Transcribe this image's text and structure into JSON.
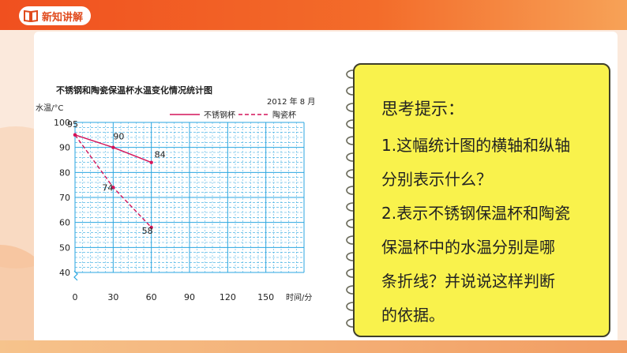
{
  "header": {
    "title": "新知讲解"
  },
  "chart_data": {
    "type": "line",
    "title": "不锈钢和陶瓷保温杯水温变化情况统计图",
    "subtitle": "2012 年 8 月",
    "xlabel": "时间/分",
    "ylabel": "水温/°C",
    "x": [
      0,
      30,
      60
    ],
    "x_ticks": [
      0,
      30,
      60,
      90,
      120,
      150
    ],
    "y_ticks": [
      40,
      50,
      60,
      70,
      80,
      90,
      100
    ],
    "xlim": [
      0,
      180
    ],
    "ylim": [
      40,
      100
    ],
    "grid": true,
    "legend_position": "top-right",
    "series": [
      {
        "name": "不锈钢杯",
        "values": [
          95,
          90,
          84
        ],
        "style": "solid",
        "color": "#d4145a"
      },
      {
        "name": "陶瓷杯",
        "values": [
          95,
          74,
          58
        ],
        "style": "dashed",
        "color": "#d4145a"
      }
    ],
    "data_labels": [
      "95",
      "90",
      "84",
      "74",
      "58"
    ]
  },
  "note": {
    "title": "思考提示：",
    "lines": [
      "1.这幅统计图的横轴和纵轴",
      "分别表示什么？",
      "2.表示不锈钢保温杯和陶瓷",
      "保温杯中的水温分别是哪",
      "条折线？并说说这样判断",
      "的依据。"
    ]
  },
  "colors": {
    "header": "#f0501f",
    "note_bg": "#f9f24c",
    "grid": "#2aa6e0",
    "series": "#d4145a"
  }
}
